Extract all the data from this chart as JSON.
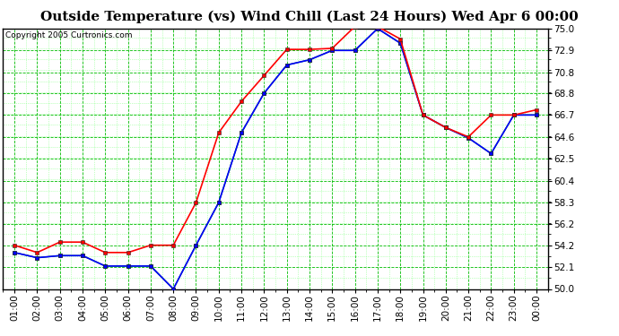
{
  "title": "Outside Temperature (vs) Wind Chill (Last 24 Hours) Wed Apr 6 00:00",
  "copyright": "Copyright 2005 Curtronics.com",
  "x_labels": [
    "01:00",
    "02:00",
    "03:00",
    "04:00",
    "05:00",
    "06:00",
    "07:00",
    "08:00",
    "09:00",
    "10:00",
    "11:00",
    "12:00",
    "13:00",
    "14:00",
    "15:00",
    "16:00",
    "17:00",
    "18:00",
    "19:00",
    "20:00",
    "21:00",
    "22:00",
    "23:00",
    "00:00"
  ],
  "y_ticks": [
    50.0,
    52.1,
    54.2,
    56.2,
    58.3,
    60.4,
    62.5,
    64.6,
    66.7,
    68.8,
    70.8,
    72.9,
    75.0
  ],
  "y_min": 50.0,
  "y_max": 75.0,
  "red_data": [
    54.2,
    53.5,
    54.5,
    54.5,
    53.5,
    53.5,
    54.2,
    54.2,
    58.3,
    65.0,
    68.0,
    70.5,
    73.0,
    73.0,
    73.1,
    75.2,
    75.2,
    74.0,
    66.7,
    65.5,
    64.6,
    66.7,
    66.7,
    67.2
  ],
  "blue_data": [
    53.5,
    53.0,
    53.2,
    53.2,
    52.2,
    52.2,
    52.2,
    50.0,
    54.2,
    58.3,
    65.0,
    68.8,
    71.5,
    72.0,
    72.9,
    72.9,
    75.0,
    73.6,
    66.7,
    65.5,
    64.5,
    63.0,
    66.7,
    66.7
  ],
  "green_data": [
    53.5,
    53.0,
    53.2,
    53.2,
    52.2,
    52.2,
    52.2,
    50.0,
    54.2,
    58.3,
    65.0,
    68.8,
    71.5,
    72.0,
    72.9,
    72.9,
    75.0,
    73.6,
    66.7,
    65.5,
    64.5,
    63.0,
    66.7,
    66.7
  ],
  "red_color": "#ff0000",
  "blue_color": "#0000ff",
  "green_color": "#008800",
  "bg_color": "#ffffff",
  "grid_major_color": "#00bb00",
  "grid_minor_color": "#88ff88",
  "title_fontsize": 11,
  "tick_fontsize": 7.5,
  "copyright_fontsize": 6.5
}
